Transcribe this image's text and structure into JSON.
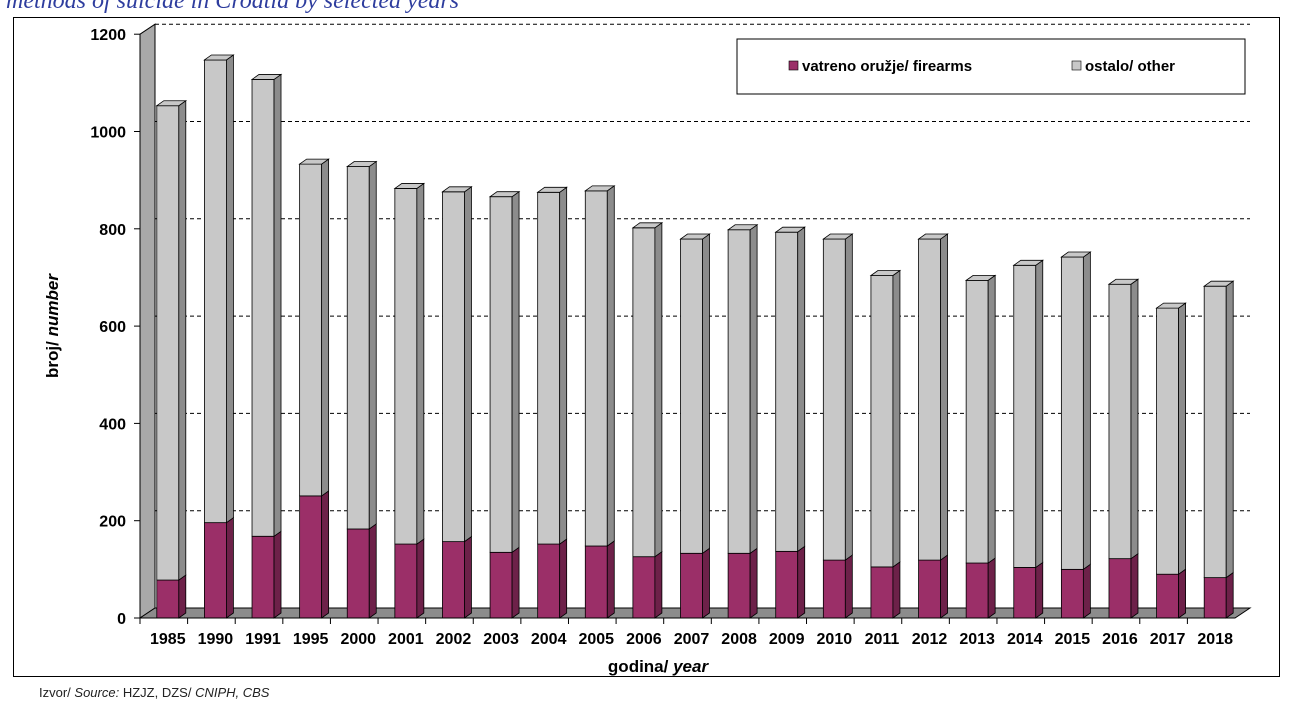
{
  "title": "methods of suicide in Croatia by selected years",
  "source": {
    "prefix": "Izvor/ ",
    "source_label": "Source:",
    "orgs": " HZJZ, DZS/ ",
    "orgs_en": "CNIPH, CBS"
  },
  "colors": {
    "firearms": "#9b2f68",
    "other": "#c8c8c8",
    "wall": "#a9a9a9",
    "floor": "#8c8c8c"
  },
  "chart_data": {
    "type": "bar",
    "stacked": true,
    "categories": [
      "1985",
      "1990",
      "1991",
      "1995",
      "2000",
      "2001",
      "2002",
      "2003",
      "2004",
      "2005",
      "2006",
      "2007",
      "2008",
      "2009",
      "2010",
      "2011",
      "2012",
      "2013",
      "2014",
      "2015",
      "2016",
      "2017",
      "2018"
    ],
    "series": [
      {
        "name": "vatreno oružje/ firearms",
        "values": [
          78,
          196,
          168,
          251,
          183,
          152,
          157,
          135,
          152,
          148,
          126,
          133,
          133,
          137,
          119,
          105,
          119,
          113,
          104,
          100,
          122,
          90,
          83
        ]
      },
      {
        "name": "ostalo/ other",
        "values": [
          975,
          951,
          939,
          682,
          745,
          731,
          719,
          731,
          723,
          730,
          676,
          646,
          665,
          656,
          660,
          599,
          660,
          581,
          621,
          642,
          564,
          547,
          599
        ]
      }
    ],
    "y_ticks": [
      "0",
      "200",
      "400",
      "600",
      "800",
      "1000",
      "1200"
    ],
    "ylim": [
      0,
      1200
    ],
    "ylabel_regular": "broj/ ",
    "ylabel_italic": "number",
    "xlabel_regular": "godina/ ",
    "xlabel_italic": "year",
    "grid": "dashed horizontal",
    "legend_position": "top-right"
  }
}
